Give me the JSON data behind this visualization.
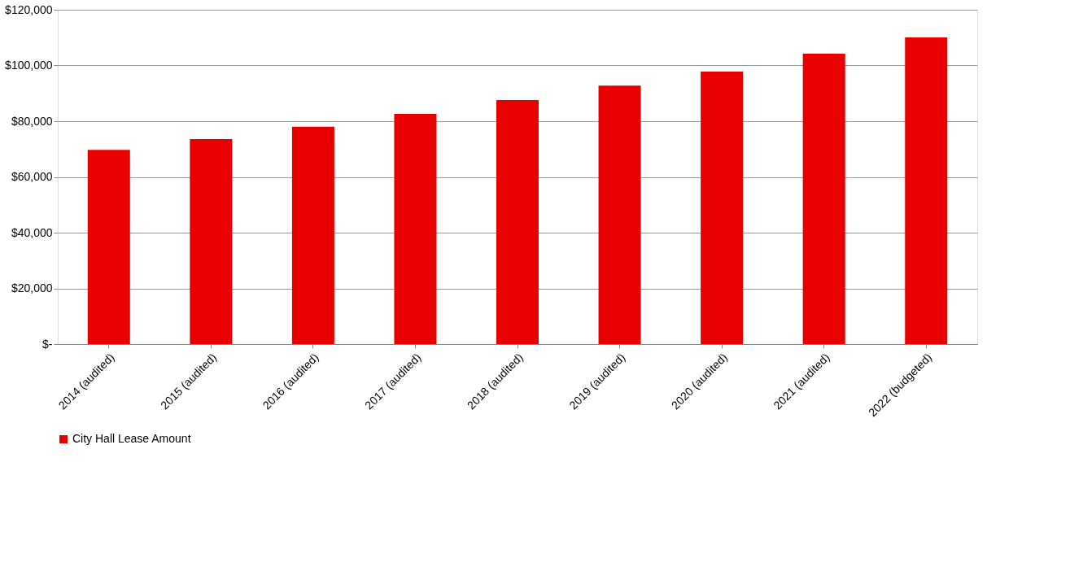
{
  "chart_data": {
    "type": "bar",
    "categories": [
      "2014 (audited)",
      "2015 (audited)",
      "2016 (audited)",
      "2017 (audited)",
      "2018 (audited)",
      "2019 (audited)",
      "2020 (audited)",
      "2021 (audited)",
      "2022 (budgeted)"
    ],
    "series": [
      {
        "name": "City Hall Lease Amount",
        "color": "#e80000",
        "values": [
          69700,
          73600,
          78000,
          82600,
          87600,
          92800,
          97800,
          104200,
          110100
        ]
      }
    ],
    "ylim": [
      0,
      120000
    ],
    "yticks": [
      {
        "value": 0,
        "label": "$-"
      },
      {
        "value": 20000,
        "label": "$20,000"
      },
      {
        "value": 40000,
        "label": "$40,000"
      },
      {
        "value": 60000,
        "label": "$60,000"
      },
      {
        "value": 80000,
        "label": "$80,000"
      },
      {
        "value": 100000,
        "label": "$100,000"
      },
      {
        "value": 120000,
        "label": "$120,000"
      }
    ],
    "grid": "y",
    "legend": "bottom"
  }
}
